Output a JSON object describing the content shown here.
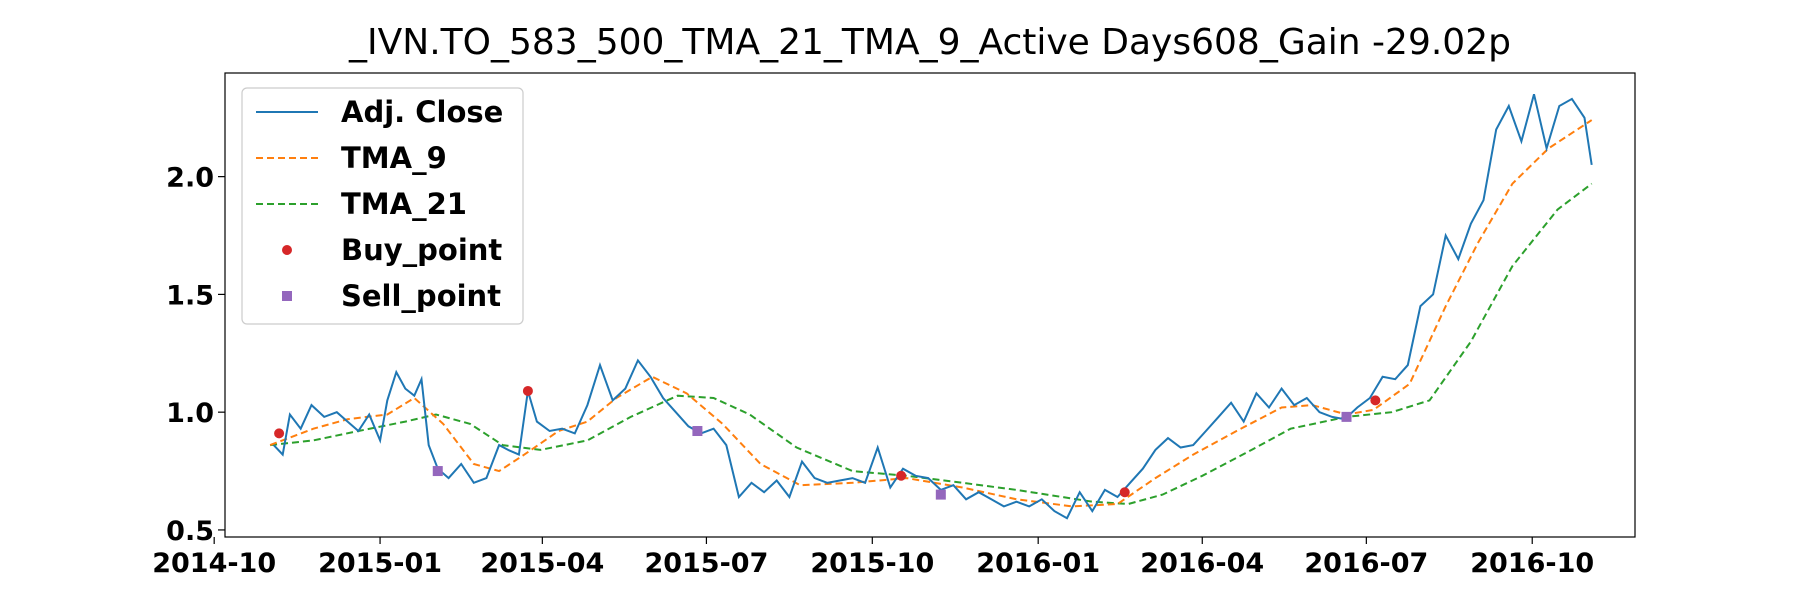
{
  "chart_data": {
    "type": "line",
    "title": "_IVN.TO_583_500_TMA_21_TMA_9_Active Days608_Gain -29.02p",
    "xlabel": "",
    "ylabel": "",
    "xlim": [
      "2014-10-07",
      "2016-11-27"
    ],
    "ylim": [
      0.47,
      2.44
    ],
    "x_ticks": [
      "2014-10",
      "2015-01",
      "2015-04",
      "2015-07",
      "2015-10",
      "2016-01",
      "2016-04",
      "2016-07",
      "2016-10"
    ],
    "y_ticks": [
      "0.5",
      "1.0",
      "1.5",
      "2.0"
    ],
    "grid": false,
    "legend_position": "upper-left",
    "colors": {
      "adj_close": "#1f77b4",
      "tma_9": "#ff7f0e",
      "tma_21": "#2ca02c",
      "buy_point": "#d62728",
      "sell_point": "#9467bd"
    },
    "series": [
      {
        "name": "Adj. Close",
        "style": "solid",
        "points": [
          [
            "2014-11-03",
            0.86
          ],
          [
            "2014-11-08",
            0.82
          ],
          [
            "2014-11-12",
            0.99
          ],
          [
            "2014-11-18",
            0.93
          ],
          [
            "2014-11-24",
            1.03
          ],
          [
            "2014-12-01",
            0.98
          ],
          [
            "2014-12-08",
            1.0
          ],
          [
            "2014-12-14",
            0.96
          ],
          [
            "2014-12-20",
            0.92
          ],
          [
            "2014-12-26",
            0.99
          ],
          [
            "2015-01-01",
            0.88
          ],
          [
            "2015-01-05",
            1.05
          ],
          [
            "2015-01-10",
            1.17
          ],
          [
            "2015-01-15",
            1.1
          ],
          [
            "2015-01-20",
            1.07
          ],
          [
            "2015-01-24",
            1.14
          ],
          [
            "2015-01-28",
            0.86
          ],
          [
            "2015-02-02",
            0.76
          ],
          [
            "2015-02-08",
            0.72
          ],
          [
            "2015-02-15",
            0.78
          ],
          [
            "2015-02-22",
            0.7
          ],
          [
            "2015-03-01",
            0.72
          ],
          [
            "2015-03-08",
            0.86
          ],
          [
            "2015-03-13",
            0.84
          ],
          [
            "2015-03-19",
            0.82
          ],
          [
            "2015-03-24",
            1.09
          ],
          [
            "2015-03-29",
            0.96
          ],
          [
            "2015-04-05",
            0.92
          ],
          [
            "2015-04-12",
            0.93
          ],
          [
            "2015-04-19",
            0.91
          ],
          [
            "2015-04-26",
            1.03
          ],
          [
            "2015-05-03",
            1.2
          ],
          [
            "2015-05-10",
            1.05
          ],
          [
            "2015-05-17",
            1.1
          ],
          [
            "2015-05-24",
            1.22
          ],
          [
            "2015-05-31",
            1.15
          ],
          [
            "2015-06-07",
            1.06
          ],
          [
            "2015-06-14",
            1.0
          ],
          [
            "2015-06-21",
            0.94
          ],
          [
            "2015-06-28",
            0.91
          ],
          [
            "2015-07-05",
            0.93
          ],
          [
            "2015-07-12",
            0.86
          ],
          [
            "2015-07-19",
            0.64
          ],
          [
            "2015-07-26",
            0.7
          ],
          [
            "2015-08-02",
            0.66
          ],
          [
            "2015-08-09",
            0.71
          ],
          [
            "2015-08-16",
            0.64
          ],
          [
            "2015-08-23",
            0.79
          ],
          [
            "2015-08-30",
            0.72
          ],
          [
            "2015-09-06",
            0.7
          ],
          [
            "2015-09-13",
            0.71
          ],
          [
            "2015-09-20",
            0.72
          ],
          [
            "2015-09-27",
            0.7
          ],
          [
            "2015-10-04",
            0.85
          ],
          [
            "2015-10-11",
            0.68
          ],
          [
            "2015-10-18",
            0.76
          ],
          [
            "2015-10-25",
            0.73
          ],
          [
            "2015-11-01",
            0.72
          ],
          [
            "2015-11-08",
            0.67
          ],
          [
            "2015-11-15",
            0.69
          ],
          [
            "2015-11-22",
            0.63
          ],
          [
            "2015-11-29",
            0.66
          ],
          [
            "2015-12-06",
            0.63
          ],
          [
            "2015-12-13",
            0.6
          ],
          [
            "2015-12-20",
            0.62
          ],
          [
            "2015-12-27",
            0.6
          ],
          [
            "2016-01-03",
            0.63
          ],
          [
            "2016-01-10",
            0.58
          ],
          [
            "2016-01-17",
            0.55
          ],
          [
            "2016-01-24",
            0.66
          ],
          [
            "2016-01-31",
            0.58
          ],
          [
            "2016-02-07",
            0.67
          ],
          [
            "2016-02-14",
            0.64
          ],
          [
            "2016-02-21",
            0.7
          ],
          [
            "2016-02-28",
            0.76
          ],
          [
            "2016-03-06",
            0.84
          ],
          [
            "2016-03-13",
            0.89
          ],
          [
            "2016-03-20",
            0.85
          ],
          [
            "2016-03-27",
            0.86
          ],
          [
            "2016-04-03",
            0.92
          ],
          [
            "2016-04-10",
            0.98
          ],
          [
            "2016-04-17",
            1.04
          ],
          [
            "2016-04-24",
            0.96
          ],
          [
            "2016-05-01",
            1.08
          ],
          [
            "2016-05-08",
            1.02
          ],
          [
            "2016-05-15",
            1.1
          ],
          [
            "2016-05-22",
            1.03
          ],
          [
            "2016-05-29",
            1.06
          ],
          [
            "2016-06-05",
            1.0
          ],
          [
            "2016-06-12",
            0.98
          ],
          [
            "2016-06-19",
            0.97
          ],
          [
            "2016-06-26",
            1.02
          ],
          [
            "2016-07-03",
            1.06
          ],
          [
            "2016-07-10",
            1.15
          ],
          [
            "2016-07-17",
            1.14
          ],
          [
            "2016-07-24",
            1.2
          ],
          [
            "2016-07-31",
            1.45
          ],
          [
            "2016-08-07",
            1.5
          ],
          [
            "2016-08-14",
            1.75
          ],
          [
            "2016-08-21",
            1.65
          ],
          [
            "2016-08-28",
            1.8
          ],
          [
            "2016-09-04",
            1.9
          ],
          [
            "2016-09-11",
            2.2
          ],
          [
            "2016-09-18",
            2.3
          ],
          [
            "2016-09-25",
            2.15
          ],
          [
            "2016-10-02",
            2.35
          ],
          [
            "2016-10-09",
            2.12
          ],
          [
            "2016-10-16",
            2.3
          ],
          [
            "2016-10-23",
            2.33
          ],
          [
            "2016-10-30",
            2.25
          ],
          [
            "2016-11-03",
            2.05
          ]
        ]
      },
      {
        "name": "TMA_9",
        "style": "dashed",
        "points": [
          [
            "2014-11-01",
            0.86
          ],
          [
            "2014-11-25",
            0.93
          ],
          [
            "2014-12-14",
            0.97
          ],
          [
            "2015-01-05",
            0.99
          ],
          [
            "2015-01-20",
            1.06
          ],
          [
            "2015-02-05",
            0.95
          ],
          [
            "2015-02-22",
            0.78
          ],
          [
            "2015-03-08",
            0.75
          ],
          [
            "2015-03-22",
            0.82
          ],
          [
            "2015-04-10",
            0.92
          ],
          [
            "2015-04-26",
            0.96
          ],
          [
            "2015-05-12",
            1.06
          ],
          [
            "2015-06-01",
            1.15
          ],
          [
            "2015-06-20",
            1.08
          ],
          [
            "2015-07-10",
            0.95
          ],
          [
            "2015-07-31",
            0.78
          ],
          [
            "2015-08-22",
            0.69
          ],
          [
            "2015-09-20",
            0.7
          ],
          [
            "2015-10-20",
            0.72
          ],
          [
            "2015-11-20",
            0.68
          ],
          [
            "2015-12-20",
            0.63
          ],
          [
            "2016-01-20",
            0.6
          ],
          [
            "2016-02-14",
            0.61
          ],
          [
            "2016-03-06",
            0.72
          ],
          [
            "2016-03-27",
            0.82
          ],
          [
            "2016-04-20",
            0.92
          ],
          [
            "2016-05-15",
            1.02
          ],
          [
            "2016-06-01",
            1.03
          ],
          [
            "2016-06-20",
            0.99
          ],
          [
            "2016-07-05",
            1.01
          ],
          [
            "2016-07-25",
            1.12
          ],
          [
            "2016-08-14",
            1.45
          ],
          [
            "2016-09-01",
            1.72
          ],
          [
            "2016-09-20",
            1.97
          ],
          [
            "2016-10-10",
            2.12
          ],
          [
            "2016-11-03",
            2.24
          ]
        ]
      },
      {
        "name": "TMA_21",
        "style": "dashed",
        "points": [
          [
            "2014-11-01",
            0.86
          ],
          [
            "2014-11-25",
            0.88
          ],
          [
            "2014-12-20",
            0.92
          ],
          [
            "2015-01-15",
            0.96
          ],
          [
            "2015-02-01",
            0.99
          ],
          [
            "2015-02-20",
            0.95
          ],
          [
            "2015-03-10",
            0.86
          ],
          [
            "2015-03-31",
            0.84
          ],
          [
            "2015-04-26",
            0.88
          ],
          [
            "2015-05-20",
            0.98
          ],
          [
            "2015-06-15",
            1.07
          ],
          [
            "2015-07-05",
            1.06
          ],
          [
            "2015-07-25",
            0.99
          ],
          [
            "2015-08-20",
            0.85
          ],
          [
            "2015-09-20",
            0.75
          ],
          [
            "2015-10-20",
            0.73
          ],
          [
            "2015-11-20",
            0.7
          ],
          [
            "2015-12-20",
            0.67
          ],
          [
            "2016-01-31",
            0.62
          ],
          [
            "2016-02-20",
            0.61
          ],
          [
            "2016-03-10",
            0.65
          ],
          [
            "2016-04-01",
            0.73
          ],
          [
            "2016-04-26",
            0.83
          ],
          [
            "2016-05-20",
            0.93
          ],
          [
            "2016-06-20",
            0.98
          ],
          [
            "2016-07-15",
            1.0
          ],
          [
            "2016-08-05",
            1.05
          ],
          [
            "2016-08-28",
            1.3
          ],
          [
            "2016-09-20",
            1.62
          ],
          [
            "2016-10-15",
            1.86
          ],
          [
            "2016-11-03",
            1.97
          ]
        ]
      },
      {
        "name": "Buy_point",
        "style": "marker-circle",
        "points": [
          [
            "2014-11-06",
            0.91
          ],
          [
            "2015-03-24",
            1.09
          ],
          [
            "2015-10-17",
            0.73
          ],
          [
            "2016-02-18",
            0.66
          ],
          [
            "2016-07-06",
            1.05
          ]
        ]
      },
      {
        "name": "Sell_point",
        "style": "marker-square",
        "points": [
          [
            "2015-02-02",
            0.75
          ],
          [
            "2015-06-26",
            0.92
          ],
          [
            "2015-11-08",
            0.65
          ],
          [
            "2016-06-20",
            0.98
          ]
        ]
      }
    ]
  }
}
